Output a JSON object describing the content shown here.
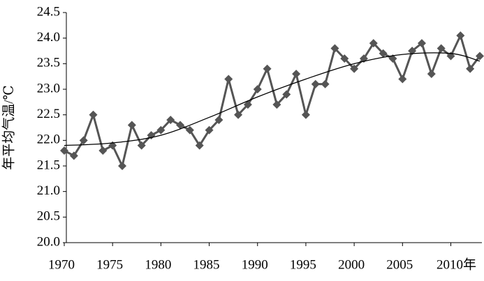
{
  "chart_data": {
    "type": "line",
    "y_label": "年平均气温/℃",
    "x": [
      1970,
      1971,
      1972,
      1973,
      1974,
      1975,
      1976,
      1977,
      1978,
      1979,
      1980,
      1981,
      1982,
      1983,
      1984,
      1985,
      1986,
      1987,
      1988,
      1989,
      1990,
      1991,
      1992,
      1993,
      1994,
      1995,
      1996,
      1997,
      1998,
      1999,
      2000,
      2001,
      2002,
      2003,
      2004,
      2005,
      2006,
      2007,
      2008,
      2009,
      2010,
      2011,
      2012,
      2013
    ],
    "series": [
      {
        "color": "#555555",
        "marker": "diamond",
        "values": [
          21.8,
          21.7,
          22.0,
          22.5,
          21.8,
          21.9,
          21.5,
          22.3,
          21.9,
          22.1,
          22.2,
          22.4,
          22.3,
          22.2,
          21.9,
          22.2,
          22.4,
          23.2,
          22.5,
          22.7,
          23.0,
          23.4,
          22.7,
          22.9,
          23.3,
          22.5,
          23.1,
          23.1,
          23.8,
          23.6,
          23.4,
          23.6,
          23.9,
          23.7,
          23.6,
          23.2,
          23.75,
          23.9,
          23.3,
          23.8,
          23.65,
          24.05,
          23.4,
          23.65
        ]
      },
      {
        "color": "#000000",
        "smooth": true,
        "x": [
          1970,
          1975,
          1980,
          1985,
          1990,
          1995,
          2000,
          2005,
          2010,
          2013
        ],
        "values": [
          21.9,
          21.95,
          22.1,
          22.45,
          22.85,
          23.2,
          23.5,
          23.68,
          23.7,
          23.55
        ]
      }
    ],
    "xlim": [
      1970,
      2013
    ],
    "xticks": [
      1970,
      1975,
      1980,
      1985,
      1990,
      1995,
      2000,
      2005,
      {
        "value": 2010,
        "label": "2010年"
      }
    ],
    "ylim": [
      20,
      24.5
    ],
    "yticks": [
      {
        "value": 20,
        "label": "20.0"
      },
      20.5,
      {
        "value": 21,
        "label": "21.0"
      },
      21.5,
      {
        "value": 22,
        "label": "22.0"
      },
      22.5,
      {
        "value": 23,
        "label": "23.0"
      },
      23.5,
      {
        "value": 24,
        "label": "24.0"
      },
      24.5
    ],
    "grid": false
  }
}
